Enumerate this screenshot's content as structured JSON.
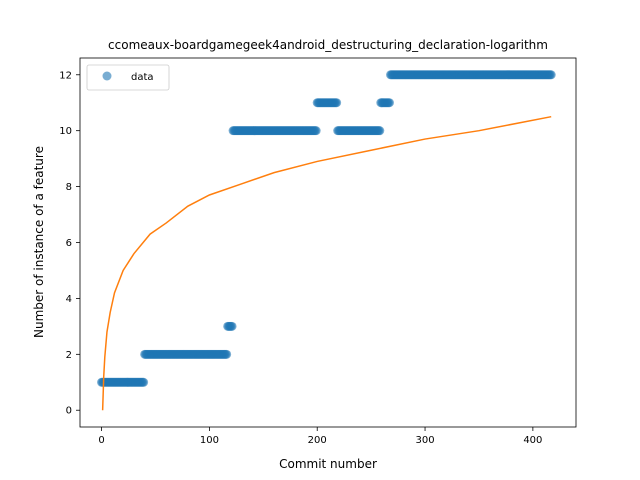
{
  "chart_data": {
    "type": "scatter",
    "title": "ccomeaux-boardgamegeek4android_destructuring_declaration-logarithm",
    "xlabel": "Commit number",
    "ylabel": "Number of instance of a feature",
    "xlim": [
      -20,
      440
    ],
    "ylim": [
      -0.6,
      12.6
    ],
    "xticks": [
      0,
      100,
      200,
      300,
      400
    ],
    "yticks": [
      0,
      2,
      4,
      6,
      8,
      10,
      12
    ],
    "grid": false,
    "legend": {
      "placement": "upper-left",
      "entries": [
        "data"
      ]
    },
    "colors": {
      "data": "#1f77b4",
      "fit": "#ff7f0e"
    },
    "series": [
      {
        "name": "data",
        "kind": "scatter",
        "runs": [
          {
            "x_start": 0,
            "x_end": 39,
            "y": 1
          },
          {
            "x_start": 40,
            "x_end": 116,
            "y": 2
          },
          {
            "x_start": 117,
            "x_end": 121,
            "y": 3
          },
          {
            "x_start": 122,
            "x_end": 199,
            "y": 10
          },
          {
            "x_start": 200,
            "x_end": 218,
            "y": 11
          },
          {
            "x_start": 219,
            "x_end": 258,
            "y": 10
          },
          {
            "x_start": 259,
            "x_end": 267,
            "y": 11
          },
          {
            "x_start": 268,
            "x_end": 417,
            "y": 12
          }
        ]
      },
      {
        "kind": "line",
        "x": [
          1,
          2,
          3,
          5,
          8,
          12,
          20,
          30,
          45,
          60,
          80,
          100,
          130,
          160,
          200,
          250,
          300,
          350,
          417
        ],
        "y": [
          0.0,
          1.2,
          1.9,
          2.8,
          3.5,
          4.2,
          5.0,
          5.6,
          6.3,
          6.7,
          7.3,
          7.7,
          8.1,
          8.5,
          8.9,
          9.3,
          9.7,
          10.0,
          10.5
        ]
      }
    ]
  }
}
